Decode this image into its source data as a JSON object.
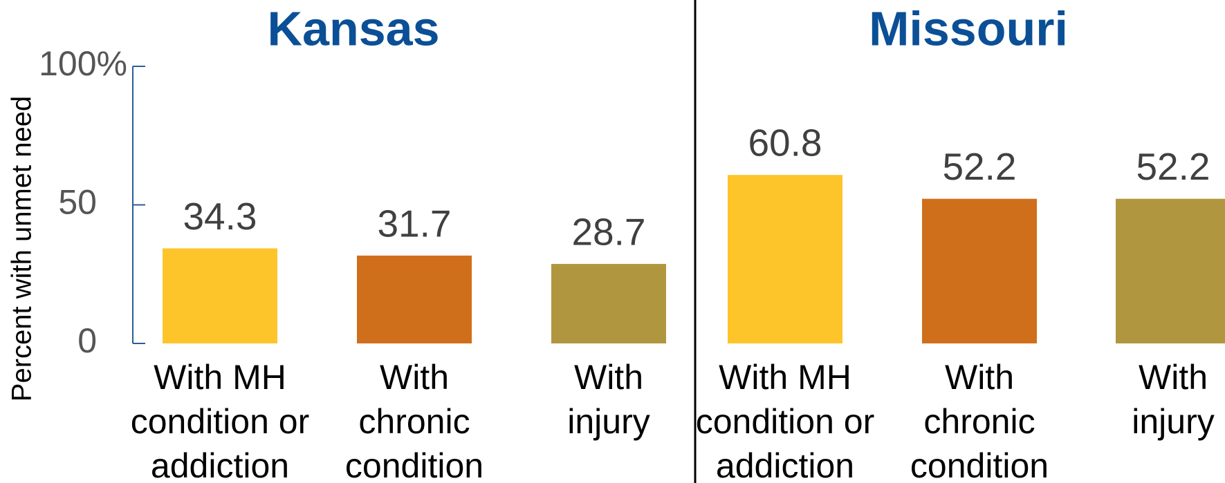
{
  "chart_data": [
    {
      "type": "bar",
      "title": "Kansas",
      "ylabel": "Percent with unmet need",
      "categories": [
        "With MH\ncondition or\naddiction",
        "With\nchronic\ncondition",
        "With\ninjury"
      ],
      "values": [
        34.3,
        31.7,
        28.7
      ],
      "colors": [
        "#fdc52a",
        "#cf6f1c",
        "#b0963e"
      ],
      "ylim": [
        0,
        100
      ],
      "yticks": [
        0,
        50,
        {
          "value": 100,
          "label": "100%"
        }
      ]
    },
    {
      "type": "bar",
      "title": "Missouri",
      "categories": [
        "With MH\ncondition or\naddiction",
        "With\nchronic\ncondition",
        "With\ninjury"
      ],
      "values": [
        60.8,
        52.2,
        52.2
      ],
      "colors": [
        "#fdc52a",
        "#cf6f1c",
        "#b0963e"
      ],
      "ylim": [
        0,
        100
      ]
    }
  ]
}
